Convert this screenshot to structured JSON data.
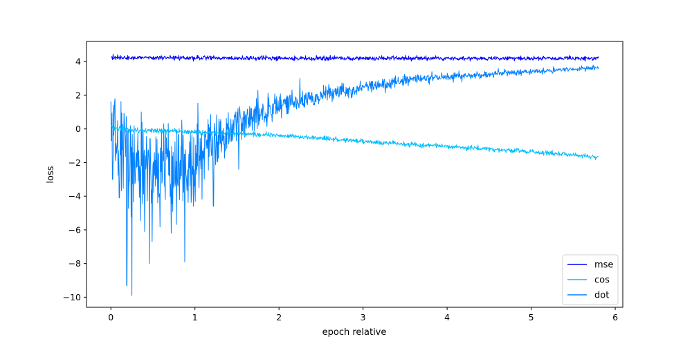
{
  "chart_data": {
    "type": "line",
    "title": "",
    "xlabel": "epoch relative",
    "ylabel": "loss",
    "xlim": [
      -0.29,
      6.09
    ],
    "ylim": [
      -10.6,
      5.2
    ],
    "xticks": [
      0,
      1,
      2,
      3,
      4,
      5,
      6
    ],
    "yticks": [
      4,
      2,
      0,
      -2,
      -4,
      -6,
      -8,
      -10
    ],
    "xtick_labels": [
      "0",
      "1",
      "2",
      "3",
      "4",
      "5",
      "6"
    ],
    "ytick_labels": [
      "4",
      "2",
      "0",
      "−2",
      "−4",
      "−6",
      "−8",
      "−10"
    ],
    "grid": false,
    "legend_position": "lower-right",
    "x_range": [
      0,
      5.8
    ],
    "series": [
      {
        "name": "mse",
        "color": "#0000ff",
        "x": [
          0,
          1,
          2,
          3,
          4,
          5,
          5.8
        ],
        "y": [
          4.25,
          4.22,
          4.2,
          4.2,
          4.2,
          4.2,
          4.2
        ],
        "noise": 0.09
      },
      {
        "name": "cos",
        "color": "#00bfff",
        "x": [
          0,
          0.3,
          0.5,
          0.8,
          1,
          1.3,
          1.5,
          2,
          2.5,
          3,
          3.5,
          4,
          4.5,
          5,
          5.5,
          5.8
        ],
        "y": [
          0.1,
          -0.1,
          -0.1,
          -0.15,
          -0.2,
          -0.25,
          -0.28,
          -0.4,
          -0.55,
          -0.75,
          -0.9,
          -1.05,
          -1.2,
          -1.35,
          -1.55,
          -1.7
        ],
        "noise": 0.1
      },
      {
        "name": "dot",
        "color": "#0080ff",
        "x": [
          0,
          0.1,
          0.3,
          0.5,
          0.8,
          1,
          1.2,
          1.5,
          2,
          2.5,
          3,
          3.5,
          4,
          4.5,
          5,
          5.5,
          5.8
        ],
        "y": [
          0.2,
          -1,
          -1.7,
          -2,
          -2.2,
          -2,
          -0.8,
          0.3,
          1.4,
          2.0,
          2.5,
          2.9,
          3.1,
          3.25,
          3.4,
          3.55,
          3.65
        ],
        "noise": [
          2.0,
          2.0,
          2.1,
          2.1,
          2.1,
          1.9,
          1.0,
          0.8,
          0.55,
          0.4,
          0.3,
          0.22,
          0.18,
          0.15,
          0.12,
          0.1,
          0.1
        ],
        "spikes": [
          [
            0.02,
            -3.0
          ],
          [
            0.05,
            1.8
          ],
          [
            0.1,
            -4.1
          ],
          [
            0.19,
            -9.3
          ],
          [
            0.25,
            -9.9
          ],
          [
            0.4,
            -6.1
          ],
          [
            0.46,
            -8.0
          ],
          [
            0.72,
            -6.2
          ],
          [
            0.88,
            -7.9
          ],
          [
            0.98,
            -4.6
          ],
          [
            1.22,
            -4.6
          ],
          [
            1.52,
            -2.4
          ],
          [
            1.75,
            2.3
          ],
          [
            2.25,
            3.0
          ],
          [
            1.05,
            -3.5
          ]
        ]
      }
    ]
  }
}
